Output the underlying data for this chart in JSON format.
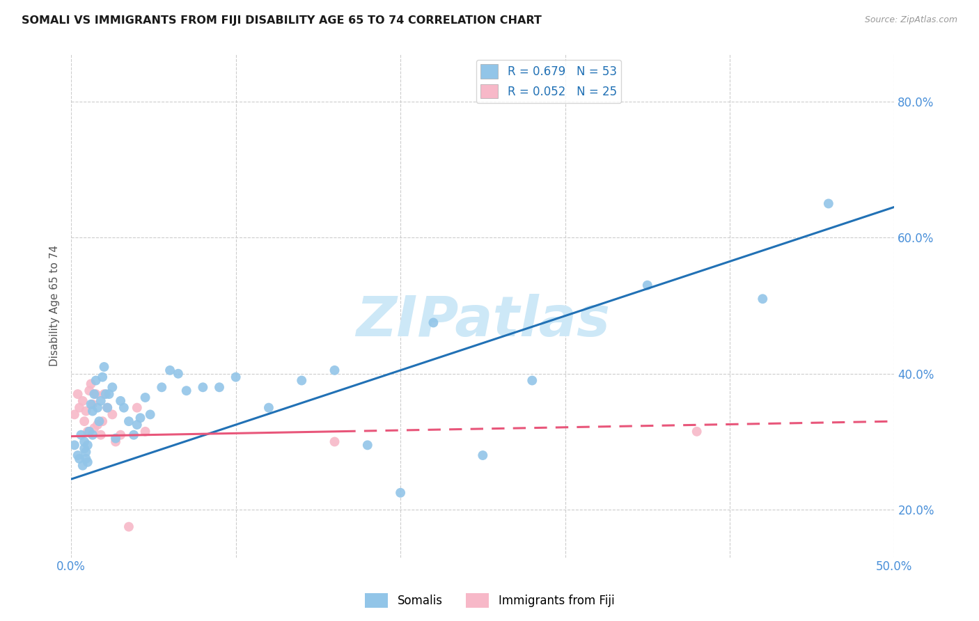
{
  "title": "SOMALI VS IMMIGRANTS FROM FIJI DISABILITY AGE 65 TO 74 CORRELATION CHART",
  "source": "Source: ZipAtlas.com",
  "ylabel": "Disability Age 65 to 74",
  "xlim": [
    0.0,
    0.5
  ],
  "ylim": [
    0.13,
    0.87
  ],
  "xticks": [
    0.0,
    0.1,
    0.2,
    0.3,
    0.4,
    0.5
  ],
  "yticks": [
    0.2,
    0.4,
    0.6,
    0.8
  ],
  "legend_r_blue": "R = 0.679",
  "legend_n_blue": "N = 53",
  "legend_r_pink": "R = 0.052",
  "legend_n_pink": "N = 25",
  "legend_label_blue": "Somalis",
  "legend_label_pink": "Immigrants from Fiji",
  "blue_color": "#92c5e8",
  "pink_color": "#f7b8c8",
  "line_blue_color": "#2171b5",
  "line_pink_color": "#e8567a",
  "watermark": "ZIPatlas",
  "watermark_color": "#cde8f7",
  "somali_x": [
    0.002,
    0.004,
    0.005,
    0.006,
    0.007,
    0.008,
    0.008,
    0.009,
    0.009,
    0.01,
    0.01,
    0.011,
    0.012,
    0.013,
    0.013,
    0.014,
    0.015,
    0.016,
    0.017,
    0.018,
    0.019,
    0.02,
    0.021,
    0.022,
    0.023,
    0.025,
    0.027,
    0.03,
    0.032,
    0.035,
    0.038,
    0.04,
    0.042,
    0.045,
    0.048,
    0.055,
    0.06,
    0.065,
    0.07,
    0.08,
    0.09,
    0.1,
    0.12,
    0.14,
    0.16,
    0.18,
    0.2,
    0.22,
    0.25,
    0.28,
    0.35,
    0.42,
    0.46
  ],
  "somali_y": [
    0.295,
    0.28,
    0.275,
    0.31,
    0.265,
    0.29,
    0.3,
    0.275,
    0.285,
    0.27,
    0.295,
    0.315,
    0.355,
    0.345,
    0.31,
    0.37,
    0.39,
    0.35,
    0.33,
    0.36,
    0.395,
    0.41,
    0.37,
    0.35,
    0.37,
    0.38,
    0.305,
    0.36,
    0.35,
    0.33,
    0.31,
    0.325,
    0.335,
    0.365,
    0.34,
    0.38,
    0.405,
    0.4,
    0.375,
    0.38,
    0.38,
    0.395,
    0.35,
    0.39,
    0.405,
    0.295,
    0.225,
    0.475,
    0.28,
    0.39,
    0.53,
    0.51,
    0.65
  ],
  "fiji_x": [
    0.002,
    0.004,
    0.005,
    0.007,
    0.008,
    0.009,
    0.01,
    0.011,
    0.012,
    0.013,
    0.014,
    0.015,
    0.016,
    0.018,
    0.019,
    0.02,
    0.022,
    0.025,
    0.027,
    0.03,
    0.035,
    0.04,
    0.045,
    0.16,
    0.38
  ],
  "fiji_y": [
    0.34,
    0.37,
    0.35,
    0.36,
    0.33,
    0.345,
    0.315,
    0.375,
    0.385,
    0.355,
    0.32,
    0.37,
    0.325,
    0.31,
    0.33,
    0.37,
    0.35,
    0.34,
    0.3,
    0.31,
    0.175,
    0.35,
    0.315,
    0.3,
    0.315
  ],
  "blue_line_x": [
    0.0,
    0.5
  ],
  "blue_line_y": [
    0.245,
    0.645
  ],
  "pink_line_x": [
    0.0,
    0.5
  ],
  "pink_line_y": [
    0.308,
    0.33
  ]
}
